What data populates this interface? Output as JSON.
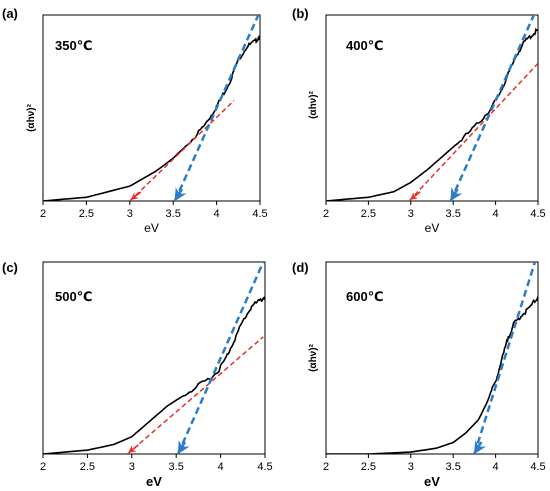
{
  "chart_data": [
    {
      "type": "line",
      "panel": "(a)",
      "annotation": "350℃",
      "xlabel": "eV",
      "ylabel": "(αhν)²",
      "xlim": [
        2,
        4.5
      ],
      "ylim": [
        0,
        1
      ],
      "xticks": [
        "2",
        "2.5",
        "3",
        "3.5",
        "4",
        "4.5"
      ],
      "series": [
        {
          "style": "solid-black",
          "x": [
            2.0,
            2.5,
            3.0,
            3.3,
            3.5,
            3.7,
            3.85,
            3.95,
            4.05,
            4.15,
            4.25,
            4.35,
            4.45,
            4.5
          ],
          "y": [
            0.0,
            0.02,
            0.08,
            0.16,
            0.23,
            0.32,
            0.4,
            0.47,
            0.55,
            0.64,
            0.76,
            0.83,
            0.86,
            0.89
          ]
        },
        {
          "style": "dashed-red-tangent",
          "x": [
            3.0,
            4.2
          ],
          "y": [
            0.0,
            0.54
          ]
        },
        {
          "style": "dashed-blue-tangent",
          "x": [
            3.52,
            4.5
          ],
          "y": [
            0.0,
            1.02
          ]
        }
      ],
      "intercept_arrows": [
        {
          "color": "red",
          "x": 3.0
        },
        {
          "color": "blue",
          "x": 3.52
        }
      ]
    },
    {
      "type": "line",
      "panel": "(b)",
      "annotation": "400℃",
      "xlabel": "eV",
      "ylabel": "(αhν)²",
      "xlim": [
        2,
        4.5
      ],
      "ylim": [
        0,
        1
      ],
      "xticks": [
        "2",
        "2.5",
        "3",
        "3.5",
        "4",
        "4.5"
      ],
      "series": [
        {
          "style": "solid-black",
          "x": [
            2.0,
            2.5,
            2.8,
            3.0,
            3.2,
            3.4,
            3.6,
            3.8,
            3.95,
            4.05,
            4.15,
            4.25,
            4.35,
            4.45,
            4.5
          ],
          "y": [
            0.0,
            0.02,
            0.05,
            0.1,
            0.17,
            0.25,
            0.33,
            0.42,
            0.5,
            0.58,
            0.68,
            0.79,
            0.86,
            0.9,
            0.92
          ]
        },
        {
          "style": "dashed-red-tangent",
          "x": [
            2.98,
            4.5
          ],
          "y": [
            0.0,
            0.74
          ]
        },
        {
          "style": "dashed-blue-tangent",
          "x": [
            3.47,
            4.5
          ],
          "y": [
            0.0,
            1.05
          ]
        }
      ],
      "intercept_arrows": [
        {
          "color": "red",
          "x": 2.98
        },
        {
          "color": "blue",
          "x": 3.47
        }
      ]
    },
    {
      "type": "line",
      "panel": "(c)",
      "annotation": "500℃",
      "xlabel": "eV",
      "ylabel": "",
      "xlim": [
        2,
        4.5
      ],
      "ylim": [
        0,
        1
      ],
      "xticks": [
        "2",
        "2.5",
        "3",
        "3.5",
        "4",
        "4.5"
      ],
      "series": [
        {
          "style": "solid-black",
          "x": [
            2.0,
            2.5,
            2.8,
            3.0,
            3.2,
            3.4,
            3.6,
            3.8,
            3.95,
            4.05,
            4.15,
            4.25,
            4.35,
            4.45,
            4.5
          ],
          "y": [
            0.0,
            0.02,
            0.05,
            0.09,
            0.17,
            0.25,
            0.31,
            0.37,
            0.42,
            0.49,
            0.59,
            0.69,
            0.77,
            0.8,
            0.82
          ]
        },
        {
          "style": "dashed-red-tangent",
          "x": [
            2.95,
            4.48
          ],
          "y": [
            0.0,
            0.61
          ]
        },
        {
          "style": "dashed-blue-tangent",
          "x": [
            3.52,
            4.5
          ],
          "y": [
            0.0,
            1.02
          ]
        }
      ],
      "intercept_arrows": [
        {
          "color": "red",
          "x": 2.95
        },
        {
          "color": "blue",
          "x": 3.52
        }
      ]
    },
    {
      "type": "line",
      "panel": "(d)",
      "annotation": "600℃",
      "xlabel": "eV",
      "ylabel": "(αhν)²",
      "xlim": [
        2,
        4.5
      ],
      "ylim": [
        0,
        1
      ],
      "xticks": [
        "2",
        "2.5",
        "3",
        "3.5",
        "4",
        "4.5"
      ],
      "series": [
        {
          "style": "solid-black",
          "x": [
            2.0,
            2.5,
            3.0,
            3.3,
            3.5,
            3.65,
            3.8,
            3.9,
            4.0,
            4.08,
            4.15,
            4.22,
            4.3,
            4.4,
            4.5
          ],
          "y": [
            0.0,
            0.0,
            0.01,
            0.03,
            0.06,
            0.11,
            0.18,
            0.27,
            0.38,
            0.5,
            0.61,
            0.68,
            0.72,
            0.76,
            0.82
          ]
        },
        {
          "style": "dashed-blue-tangent",
          "x": [
            3.75,
            4.5
          ],
          "y": [
            0.0,
            1.05
          ]
        }
      ],
      "intercept_arrows": [
        {
          "color": "blue",
          "x": 3.75
        }
      ]
    }
  ]
}
